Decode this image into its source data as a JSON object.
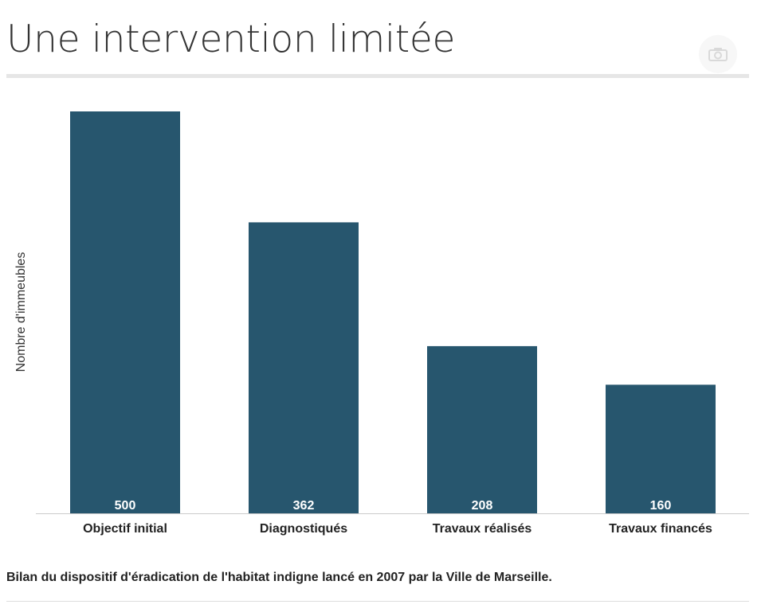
{
  "header": {
    "title": "Une intervention limitée",
    "camera_icon": "camera-icon"
  },
  "colors": {
    "bar": "#27566e",
    "label_inside": "#ffffff",
    "category_text": "#222222",
    "axis": "#cccccc"
  },
  "chart_data": {
    "type": "bar",
    "categories": [
      "Objectif initial",
      "Diagnostiqués",
      "Travaux réalisés",
      "Travaux financés"
    ],
    "values": [
      500,
      362,
      208,
      160
    ],
    "title": "",
    "xlabel": "",
    "ylabel": "Nombre d'immeubles",
    "ylim": [
      0,
      500
    ],
    "grid": false,
    "data_labels": "inside-bottom"
  },
  "footer": {
    "caption": "Bilan du dispositif d'éradication de l'habitat indigne lancé en 2007 par la Ville de Marseille."
  }
}
